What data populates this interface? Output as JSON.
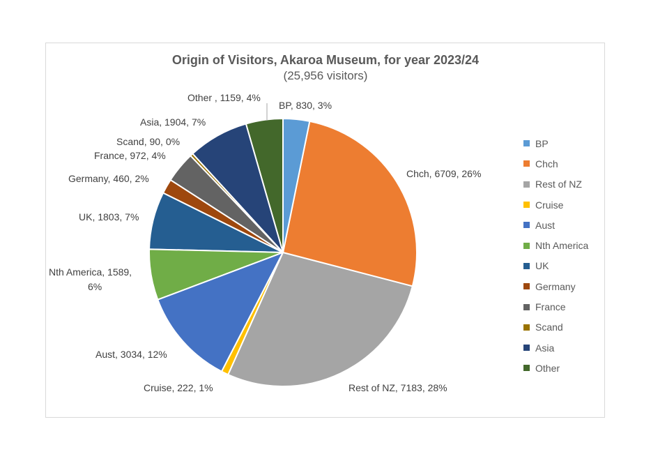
{
  "chart_data": {
    "type": "pie",
    "title": "Origin of Visitors, Akaroa Museum, for year 2023/24",
    "subtitle": "(25,956 visitors)",
    "total": 25956,
    "legend_position": "right",
    "start_angle_deg": 0,
    "direction": "clockwise",
    "categories": [
      "BP",
      "Chch",
      "Rest of NZ",
      "Cruise",
      "Aust",
      "Nth America",
      "UK",
      "Germany",
      "France",
      "Scand",
      "Asia",
      "Other"
    ],
    "values": [
      830,
      6709,
      7183,
      222,
      3034,
      1589,
      1803,
      460,
      972,
      90,
      1904,
      1159
    ],
    "percent_labels": [
      "3%",
      "26%",
      "28%",
      "1%",
      "12%",
      "6%",
      "7%",
      "2%",
      "4%",
      "0%",
      "7%",
      "4%"
    ],
    "colors": [
      "#5b9bd5",
      "#ed7d31",
      "#a5a5a5",
      "#ffc000",
      "#4472c4",
      "#70ad47",
      "#255e91",
      "#9e480e",
      "#636363",
      "#997300",
      "#264478",
      "#43682b"
    ],
    "data_labels": [
      "BP, 830, 3%",
      "Chch, 6709, 26%",
      "Rest of NZ, 7183, 28%",
      "Cruise, 222, 1%",
      "Aust, 3034, 12%",
      "Nth America, 1589, 6%",
      "UK, 1803, 7%",
      "Germany, 460, 2%",
      "France, 972, 4%",
      "Scand, 90, 0%",
      "Asia, 1904, 7%",
      "Other , 1159, 4%"
    ]
  },
  "labels": {
    "bp": "BP, 830, 3%",
    "chch": "Chch, 6709, 26%",
    "restnz": "Rest of NZ, 7183, 28%",
    "cruise": "Cruise, 222, 1%",
    "aust": "Aust, 3034, 12%",
    "ntham_line1": "Nth America, 1589,",
    "ntham_line2": "6%",
    "uk": "UK, 1803, 7%",
    "germany": "Germany, 460, 2%",
    "france": "France, 972, 4%",
    "scand": "Scand, 90, 0%",
    "asia": "Asia, 1904, 7%",
    "other": "Other , 1159, 4%"
  },
  "legend": [
    "BP",
    "Chch",
    "Rest of NZ",
    "Cruise",
    "Aust",
    "Nth America",
    "UK",
    "Germany",
    "France",
    "Scand",
    "Asia",
    "Other"
  ]
}
